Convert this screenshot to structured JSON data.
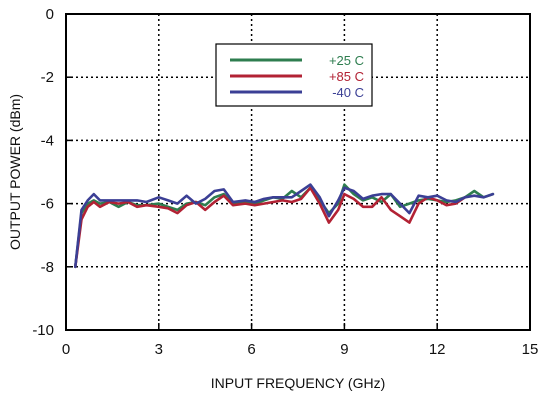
{
  "chart_data": {
    "type": "line",
    "title": "",
    "xlabel": "INPUT FREQUENCY (GHz)",
    "ylabel": "OUTPUT POWER (dBm)",
    "xlim": [
      0,
      15
    ],
    "ylim": [
      -10,
      0
    ],
    "xticks": [
      0,
      3,
      6,
      9,
      12,
      15
    ],
    "yticks": [
      0,
      -2,
      -4,
      -6,
      -8,
      -10
    ],
    "grid": "dotted",
    "legend_position": "top-center",
    "series": [
      {
        "name": "+25 C",
        "color": "#2e7d4f",
        "points": [
          [
            0.3,
            -8.0
          ],
          [
            0.5,
            -6.3
          ],
          [
            0.7,
            -6.0
          ],
          [
            0.9,
            -5.9
          ],
          [
            1.1,
            -6.0
          ],
          [
            1.4,
            -5.95
          ],
          [
            1.7,
            -6.1
          ],
          [
            2.0,
            -5.95
          ],
          [
            2.3,
            -6.05
          ],
          [
            2.6,
            -6.05
          ],
          [
            3.0,
            -6.0
          ],
          [
            3.3,
            -6.1
          ],
          [
            3.6,
            -6.2
          ],
          [
            3.9,
            -6.0
          ],
          [
            4.2,
            -5.95
          ],
          [
            4.5,
            -6.05
          ],
          [
            4.8,
            -5.8
          ],
          [
            5.1,
            -5.7
          ],
          [
            5.4,
            -6.0
          ],
          [
            5.8,
            -5.95
          ],
          [
            6.1,
            -6.0
          ],
          [
            6.4,
            -5.9
          ],
          [
            6.7,
            -5.8
          ],
          [
            7.0,
            -5.85
          ],
          [
            7.3,
            -5.6
          ],
          [
            7.6,
            -5.8
          ],
          [
            7.9,
            -5.5
          ],
          [
            8.2,
            -5.9
          ],
          [
            8.5,
            -6.3
          ],
          [
            8.8,
            -6.0
          ],
          [
            9.0,
            -5.4
          ],
          [
            9.3,
            -5.7
          ],
          [
            9.6,
            -5.9
          ],
          [
            9.9,
            -5.8
          ],
          [
            10.2,
            -5.95
          ],
          [
            10.5,
            -5.7
          ],
          [
            10.8,
            -6.1
          ],
          [
            11.1,
            -6.0
          ],
          [
            11.4,
            -5.9
          ],
          [
            11.7,
            -5.85
          ],
          [
            12.0,
            -5.9
          ],
          [
            12.3,
            -5.95
          ],
          [
            12.6,
            -5.9
          ],
          [
            12.9,
            -5.8
          ],
          [
            13.2,
            -5.6
          ],
          [
            13.5,
            -5.8
          ],
          [
            13.8,
            -5.7
          ]
        ]
      },
      {
        "name": "+85 C",
        "color": "#b22234",
        "points": [
          [
            0.3,
            -8.0
          ],
          [
            0.5,
            -6.5
          ],
          [
            0.7,
            -6.1
          ],
          [
            0.9,
            -5.95
          ],
          [
            1.1,
            -6.1
          ],
          [
            1.4,
            -5.95
          ],
          [
            1.7,
            -6.0
          ],
          [
            2.0,
            -5.95
          ],
          [
            2.3,
            -6.1
          ],
          [
            2.6,
            -6.05
          ],
          [
            3.0,
            -6.1
          ],
          [
            3.3,
            -6.15
          ],
          [
            3.6,
            -6.3
          ],
          [
            3.9,
            -6.05
          ],
          [
            4.2,
            -5.95
          ],
          [
            4.5,
            -6.2
          ],
          [
            4.8,
            -5.95
          ],
          [
            5.1,
            -5.75
          ],
          [
            5.4,
            -6.05
          ],
          [
            5.8,
            -6.0
          ],
          [
            6.1,
            -6.05
          ],
          [
            6.4,
            -6.0
          ],
          [
            6.7,
            -5.95
          ],
          [
            7.0,
            -5.9
          ],
          [
            7.3,
            -5.95
          ],
          [
            7.6,
            -5.85
          ],
          [
            7.9,
            -5.5
          ],
          [
            8.2,
            -6.0
          ],
          [
            8.5,
            -6.6
          ],
          [
            8.8,
            -6.2
          ],
          [
            9.0,
            -5.7
          ],
          [
            9.3,
            -5.85
          ],
          [
            9.6,
            -6.1
          ],
          [
            9.9,
            -6.1
          ],
          [
            10.2,
            -5.8
          ],
          [
            10.5,
            -6.2
          ],
          [
            10.8,
            -6.4
          ],
          [
            11.1,
            -6.6
          ],
          [
            11.4,
            -6.0
          ],
          [
            11.7,
            -5.8
          ],
          [
            12.0,
            -5.9
          ],
          [
            12.3,
            -6.05
          ],
          [
            12.6,
            -6.0
          ],
          [
            12.9,
            -5.8
          ]
        ]
      },
      {
        "name": "-40 C",
        "color": "#3b3f95",
        "points": [
          [
            0.3,
            -8.0
          ],
          [
            0.5,
            -6.2
          ],
          [
            0.7,
            -5.9
          ],
          [
            0.9,
            -5.7
          ],
          [
            1.1,
            -5.9
          ],
          [
            1.4,
            -5.9
          ],
          [
            1.7,
            -5.9
          ],
          [
            2.0,
            -5.9
          ],
          [
            2.3,
            -5.9
          ],
          [
            2.6,
            -5.95
          ],
          [
            3.0,
            -5.8
          ],
          [
            3.3,
            -5.9
          ],
          [
            3.6,
            -6.0
          ],
          [
            3.9,
            -5.75
          ],
          [
            4.2,
            -6.0
          ],
          [
            4.5,
            -5.85
          ],
          [
            4.8,
            -5.6
          ],
          [
            5.1,
            -5.55
          ],
          [
            5.4,
            -5.95
          ],
          [
            5.8,
            -5.9
          ],
          [
            6.1,
            -5.95
          ],
          [
            6.4,
            -5.85
          ],
          [
            6.7,
            -5.8
          ],
          [
            7.0,
            -5.8
          ],
          [
            7.3,
            -5.8
          ],
          [
            7.6,
            -5.6
          ],
          [
            7.9,
            -5.4
          ],
          [
            8.2,
            -5.8
          ],
          [
            8.5,
            -6.4
          ],
          [
            8.8,
            -5.9
          ],
          [
            9.0,
            -5.5
          ],
          [
            9.3,
            -5.6
          ],
          [
            9.6,
            -5.85
          ],
          [
            9.9,
            -5.75
          ],
          [
            10.2,
            -5.7
          ],
          [
            10.5,
            -5.7
          ],
          [
            10.8,
            -6.0
          ],
          [
            11.1,
            -6.3
          ],
          [
            11.4,
            -5.75
          ],
          [
            11.7,
            -5.8
          ],
          [
            12.0,
            -5.75
          ],
          [
            12.3,
            -5.9
          ],
          [
            12.6,
            -5.95
          ],
          [
            12.9,
            -5.8
          ],
          [
            13.2,
            -5.75
          ],
          [
            13.5,
            -5.8
          ],
          [
            13.8,
            -5.7
          ]
        ]
      }
    ]
  }
}
